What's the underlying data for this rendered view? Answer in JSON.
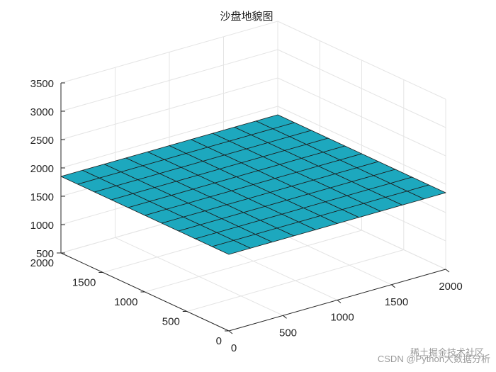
{
  "chart_data": {
    "type": "surface",
    "title": "沙盘地貌图",
    "xlabel": "",
    "ylabel": "",
    "zlabel": "",
    "x": [
      0,
      200,
      400,
      600,
      800,
      1000,
      1200,
      1400,
      1600,
      1800,
      2000
    ],
    "y": [
      0,
      200,
      400,
      600,
      800,
      1000,
      1200,
      1400,
      1600,
      1800,
      2000
    ],
    "xlim": [
      0,
      2000
    ],
    "ylim": [
      0,
      2000
    ],
    "zlim": [
      500,
      3500
    ],
    "x_ticks": [
      "0",
      "500",
      "1000",
      "1500",
      "2000"
    ],
    "y_ticks": [
      "0",
      "500",
      "1000",
      "1500",
      "2000"
    ],
    "z_ticks": [
      "500",
      "1000",
      "1500",
      "2000",
      "2500",
      "3000",
      "3500"
    ],
    "grid": true,
    "colormap": "parula",
    "z": [
      [
        1850,
        1850,
        1850,
        1850,
        1850,
        1850,
        1850,
        1850,
        1850,
        1850,
        1850
      ],
      [
        1850,
        1850,
        1850,
        1850,
        1850,
        1850,
        1850,
        1850,
        1850,
        1850,
        1850
      ],
      [
        1850,
        1850,
        1850,
        1850,
        1850,
        1850,
        1850,
        1850,
        1850,
        1850,
        1850
      ],
      [
        1850,
        1850,
        1850,
        1850,
        1850,
        1850,
        1850,
        1850,
        1850,
        1850,
        1850
      ],
      [
        1850,
        1850,
        1850,
        1850,
        1850,
        1850,
        1850,
        1850,
        1850,
        1850,
        1850
      ],
      [
        1850,
        1850,
        1850,
        1850,
        1850,
        1850,
        1850,
        1850,
        1850,
        1850,
        1850
      ],
      [
        1850,
        1850,
        1850,
        1850,
        1850,
        1850,
        1850,
        1850,
        1850,
        1850,
        1850
      ],
      [
        1850,
        1850,
        1850,
        1850,
        1850,
        1850,
        1850,
        1850,
        1850,
        1850,
        1850
      ],
      [
        1850,
        1850,
        1850,
        1850,
        1850,
        1850,
        1850,
        1850,
        1850,
        1850,
        1850
      ],
      [
        1850,
        1850,
        1850,
        1850,
        1850,
        1850,
        1850,
        1850,
        1850,
        1850,
        1850
      ],
      [
        1850,
        1850,
        1850,
        1850,
        1850,
        1850,
        1850,
        1850,
        1850,
        1850,
        1850
      ]
    ]
  },
  "watermark": "CSDN @Python大数据分析",
  "watermark_overlay": "稀土掘金技术社区"
}
